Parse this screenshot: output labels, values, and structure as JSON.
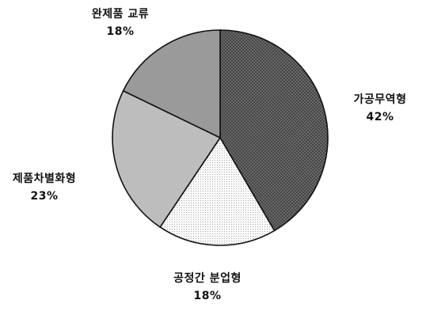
{
  "chart_data": {
    "type": "pie",
    "slices": [
      {
        "label": "가공무역형",
        "value": 42,
        "percent_label": "42%",
        "fill": "#555555",
        "pattern": "dots-dark"
      },
      {
        "label": "공정간 분업형",
        "value": 18,
        "percent_label": "18%",
        "fill": "#f2f2f2",
        "pattern": "dots-light"
      },
      {
        "label": "제품차별화형",
        "value": 23,
        "percent_label": "23%",
        "fill": "#bdbdbd",
        "pattern": "solid"
      },
      {
        "label": "완제품 교류",
        "value": 18,
        "percent_label": "18%",
        "fill": "#9a9a9a",
        "pattern": "solid"
      }
    ],
    "start_angle_deg": 0,
    "direction": "clockwise",
    "legend": "none"
  }
}
